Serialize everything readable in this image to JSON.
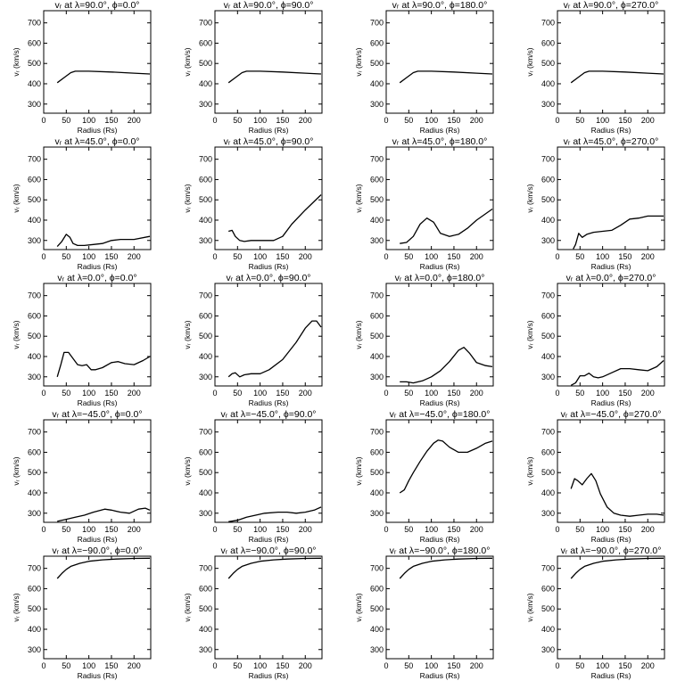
{
  "common": {
    "xlabel": "Radius (Rs)",
    "ylabel": "vᵣ (km/s)",
    "xlim": [
      0,
      237
    ],
    "ylim": [
      255,
      760
    ],
    "xticks": [
      0,
      50,
      100,
      150,
      200
    ],
    "yticks": [
      300,
      400,
      500,
      600,
      700
    ],
    "line_color": "#000000"
  },
  "chart_data": [
    {
      "type": "line",
      "title": "vᵣ at λ=90.0°, ϕ=0.0°",
      "x": [
        30,
        45,
        60,
        70,
        100,
        150,
        200,
        235
      ],
      "y": [
        405,
        430,
        455,
        462,
        462,
        458,
        452,
        448
      ]
    },
    {
      "type": "line",
      "title": "vᵣ at λ=90.0°, ϕ=90.0°",
      "x": [
        30,
        45,
        60,
        70,
        100,
        150,
        200,
        235
      ],
      "y": [
        405,
        430,
        455,
        462,
        462,
        458,
        452,
        448
      ]
    },
    {
      "type": "line",
      "title": "vᵣ at λ=90.0°, ϕ=180.0°",
      "x": [
        30,
        45,
        60,
        70,
        100,
        150,
        200,
        235
      ],
      "y": [
        405,
        430,
        455,
        462,
        462,
        458,
        452,
        448
      ]
    },
    {
      "type": "line",
      "title": "vᵣ at λ=90.0°, ϕ=270.0°",
      "x": [
        30,
        45,
        60,
        70,
        100,
        150,
        200,
        235
      ],
      "y": [
        405,
        430,
        455,
        462,
        462,
        458,
        452,
        448
      ]
    },
    {
      "type": "line",
      "title": "vᵣ at λ=45.0°, ϕ=0.0°",
      "x": [
        30,
        40,
        50,
        58,
        65,
        75,
        90,
        110,
        130,
        150,
        170,
        200,
        235
      ],
      "y": [
        270,
        295,
        330,
        315,
        285,
        275,
        275,
        280,
        285,
        300,
        305,
        305,
        320
      ]
    },
    {
      "type": "line",
      "title": "vᵣ at λ=45.0°, ϕ=90.0°",
      "x": [
        30,
        38,
        45,
        55,
        65,
        80,
        100,
        130,
        150,
        170,
        200,
        235
      ],
      "y": [
        345,
        350,
        320,
        300,
        295,
        300,
        300,
        300,
        320,
        380,
        450,
        525
      ]
    },
    {
      "type": "line",
      "title": "vᵣ at λ=45.0°, ϕ=180.0°",
      "x": [
        30,
        45,
        60,
        75,
        90,
        105,
        120,
        140,
        160,
        180,
        200,
        235
      ],
      "y": [
        285,
        290,
        320,
        380,
        410,
        390,
        335,
        320,
        330,
        360,
        400,
        455
      ]
    },
    {
      "type": "line",
      "title": "vᵣ at λ=45.0°, ϕ=270.0°",
      "x": [
        35,
        40,
        47,
        55,
        65,
        80,
        100,
        120,
        140,
        160,
        180,
        200,
        235
      ],
      "y": [
        258,
        280,
        335,
        315,
        330,
        340,
        345,
        350,
        375,
        405,
        410,
        420,
        420
      ]
    },
    {
      "type": "line",
      "title": "vᵣ at λ=0.0°, ϕ=0.0°",
      "x": [
        30,
        38,
        45,
        55,
        65,
        75,
        85,
        95,
        105,
        115,
        130,
        150,
        165,
        180,
        200,
        220,
        235
      ],
      "y": [
        300,
        360,
        420,
        420,
        390,
        360,
        355,
        360,
        335,
        335,
        345,
        370,
        375,
        365,
        360,
        380,
        400
      ]
    },
    {
      "type": "line",
      "title": "vᵣ at λ=0.0°, ϕ=90.0°",
      "x": [
        30,
        38,
        45,
        55,
        65,
        80,
        100,
        120,
        150,
        180,
        200,
        215,
        225,
        235
      ],
      "y": [
        300,
        315,
        320,
        300,
        310,
        315,
        315,
        335,
        385,
        470,
        540,
        575,
        575,
        545
      ]
    },
    {
      "type": "line",
      "title": "vᵣ at λ=0.0°, ϕ=180.0°",
      "x": [
        30,
        45,
        60,
        80,
        100,
        120,
        140,
        160,
        172,
        185,
        200,
        220,
        235
      ],
      "y": [
        275,
        275,
        270,
        280,
        300,
        330,
        375,
        430,
        445,
        415,
        370,
        355,
        350
      ]
    },
    {
      "type": "line",
      "title": "vᵣ at λ=0.0°, ϕ=270.0°",
      "x": [
        30,
        40,
        50,
        60,
        70,
        80,
        90,
        100,
        120,
        140,
        160,
        180,
        200,
        220,
        235
      ],
      "y": [
        258,
        270,
        305,
        305,
        318,
        300,
        295,
        300,
        320,
        340,
        340,
        335,
        330,
        350,
        380
      ]
    },
    {
      "type": "line",
      "title": "vᵣ at λ=−45.0°, ϕ=0.0°",
      "x": [
        30,
        50,
        70,
        90,
        110,
        135,
        150,
        170,
        190,
        210,
        225,
        235
      ],
      "y": [
        260,
        270,
        280,
        290,
        305,
        320,
        315,
        305,
        300,
        320,
        325,
        315
      ]
    },
    {
      "type": "line",
      "title": "vᵣ at λ=−45.0°, ϕ=90.0°",
      "x": [
        30,
        50,
        70,
        90,
        110,
        140,
        160,
        180,
        200,
        220,
        235
      ],
      "y": [
        258,
        265,
        280,
        290,
        300,
        305,
        305,
        300,
        305,
        315,
        330
      ]
    },
    {
      "type": "line",
      "title": "vᵣ at λ=−45.0°, ϕ=180.0°",
      "x": [
        30,
        40,
        50,
        60,
        75,
        90,
        105,
        115,
        125,
        140,
        160,
        180,
        200,
        220,
        235
      ],
      "y": [
        400,
        415,
        460,
        500,
        555,
        605,
        645,
        660,
        655,
        625,
        600,
        600,
        620,
        645,
        655
      ]
    },
    {
      "type": "line",
      "title": "vᵣ at λ=−45.0°, ϕ=270.0°",
      "x": [
        30,
        38,
        45,
        55,
        65,
        75,
        85,
        95,
        110,
        125,
        140,
        160,
        180,
        200,
        220,
        235
      ],
      "y": [
        420,
        470,
        460,
        440,
        470,
        495,
        460,
        395,
        330,
        300,
        290,
        285,
        290,
        295,
        295,
        290
      ]
    },
    {
      "type": "line",
      "title": "vᵣ at λ=−90.0°, ϕ=0.0°",
      "x": [
        30,
        40,
        50,
        60,
        80,
        100,
        130,
        160,
        200,
        235
      ],
      "y": [
        650,
        675,
        695,
        710,
        725,
        735,
        742,
        746,
        749,
        750
      ]
    },
    {
      "type": "line",
      "title": "vᵣ at λ=−90.0°, ϕ=90.0°",
      "x": [
        30,
        40,
        50,
        60,
        80,
        100,
        130,
        160,
        200,
        235
      ],
      "y": [
        650,
        675,
        695,
        710,
        725,
        735,
        742,
        746,
        749,
        750
      ]
    },
    {
      "type": "line",
      "title": "vᵣ at λ=−90.0°, ϕ=180.0°",
      "x": [
        30,
        40,
        50,
        60,
        80,
        100,
        130,
        160,
        200,
        235
      ],
      "y": [
        650,
        675,
        695,
        710,
        725,
        735,
        742,
        746,
        749,
        750
      ]
    },
    {
      "type": "line",
      "title": "vᵣ at λ=−90.0°, ϕ=270.0°",
      "x": [
        30,
        40,
        50,
        60,
        80,
        100,
        130,
        160,
        200,
        235
      ],
      "y": [
        650,
        675,
        695,
        710,
        725,
        735,
        742,
        746,
        749,
        750
      ]
    }
  ]
}
